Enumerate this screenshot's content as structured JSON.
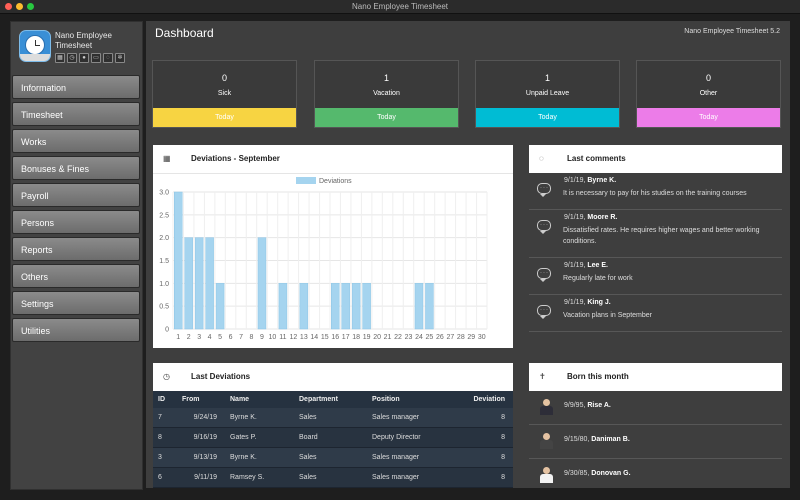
{
  "window": {
    "title": "Nano Employee Timesheet"
  },
  "app": {
    "name": "Nano Employee Timesheet",
    "version": "Nano Employee Timesheet 5.2",
    "mini_icons": [
      "calendar-icon",
      "clock-icon",
      "user-icon",
      "card-icon",
      "chat-icon",
      "gear-icon"
    ]
  },
  "nav": {
    "items": [
      "Information",
      "Timesheet",
      "Works",
      "Bonuses & Fines",
      "Payroll",
      "Persons",
      "Reports",
      "Others",
      "Settings",
      "Utilities"
    ]
  },
  "dashboard": {
    "title": "Dashboard"
  },
  "stats": [
    {
      "value": "0",
      "label": "Sick",
      "action": "Today",
      "color": "#f7d442"
    },
    {
      "value": "1",
      "label": "Vacation",
      "action": "Today",
      "color": "#55b96d"
    },
    {
      "value": "1",
      "label": "Unpaid Leave",
      "action": "Today",
      "color": "#00bcd4"
    },
    {
      "value": "0",
      "label": "Other",
      "action": "Today",
      "color": "#ec7ce8"
    }
  ],
  "deviations_panel": {
    "title": "Deviations - September"
  },
  "chart_data": {
    "type": "bar",
    "title": "Deviations - September",
    "legend": "Deviations",
    "legend_position": "top",
    "categories": [
      "1",
      "2",
      "3",
      "4",
      "5",
      "6",
      "7",
      "8",
      "9",
      "10",
      "11",
      "12",
      "13",
      "14",
      "15",
      "16",
      "17",
      "18",
      "19",
      "20",
      "21",
      "22",
      "23",
      "24",
      "25",
      "26",
      "27",
      "28",
      "29",
      "30"
    ],
    "values": [
      3,
      2,
      2,
      2,
      1,
      0,
      0,
      0,
      2,
      0,
      1,
      0,
      1,
      0,
      0,
      1,
      1,
      1,
      1,
      0,
      0,
      0,
      0,
      1,
      1,
      0,
      0,
      0,
      0,
      0
    ],
    "ylim": [
      0,
      3
    ],
    "yticks": [
      "0",
      "0.5",
      "1.0",
      "1.5",
      "2.0",
      "2.5",
      "3.0"
    ],
    "grid": true,
    "color": "#a5d4ef"
  },
  "comments_panel": {
    "title": "Last comments"
  },
  "comments": [
    {
      "date": "9/1/19,",
      "author": "Byrne K.",
      "text": "It is necessary to pay for his studies on the training courses"
    },
    {
      "date": "9/1/19,",
      "author": "Moore R.",
      "text": "Dissatisfied rates. He requires higher wages and better working conditions."
    },
    {
      "date": "9/1/19,",
      "author": "Lee E.",
      "text": "Regularly late for work"
    },
    {
      "date": "9/1/19,",
      "author": "King J.",
      "text": "Vacation plans in September"
    }
  ],
  "last_deviations_panel": {
    "title": "Last Deviations"
  },
  "table": {
    "headers": [
      "ID",
      "From",
      "Name",
      "Department",
      "Position",
      "Deviation"
    ],
    "rows": [
      [
        "7",
        "9/24/19",
        "Byrne K.",
        "Sales",
        "Sales manager",
        "8"
      ],
      [
        "8",
        "9/16/19",
        "Gates P.",
        "Board",
        "Deputy Director",
        "8"
      ],
      [
        "3",
        "9/13/19",
        "Byrne K.",
        "Sales",
        "Sales manager",
        "8"
      ],
      [
        "6",
        "9/11/19",
        "Ramsey S.",
        "Sales",
        "Sales manager",
        "8"
      ]
    ]
  },
  "born_panel": {
    "title": "Born this month"
  },
  "born": [
    {
      "date": "9/9/95,",
      "name": "Rise A."
    },
    {
      "date": "9/15/80,",
      "name": "Daniman B."
    },
    {
      "date": "9/30/85,",
      "name": "Donovan G."
    }
  ]
}
